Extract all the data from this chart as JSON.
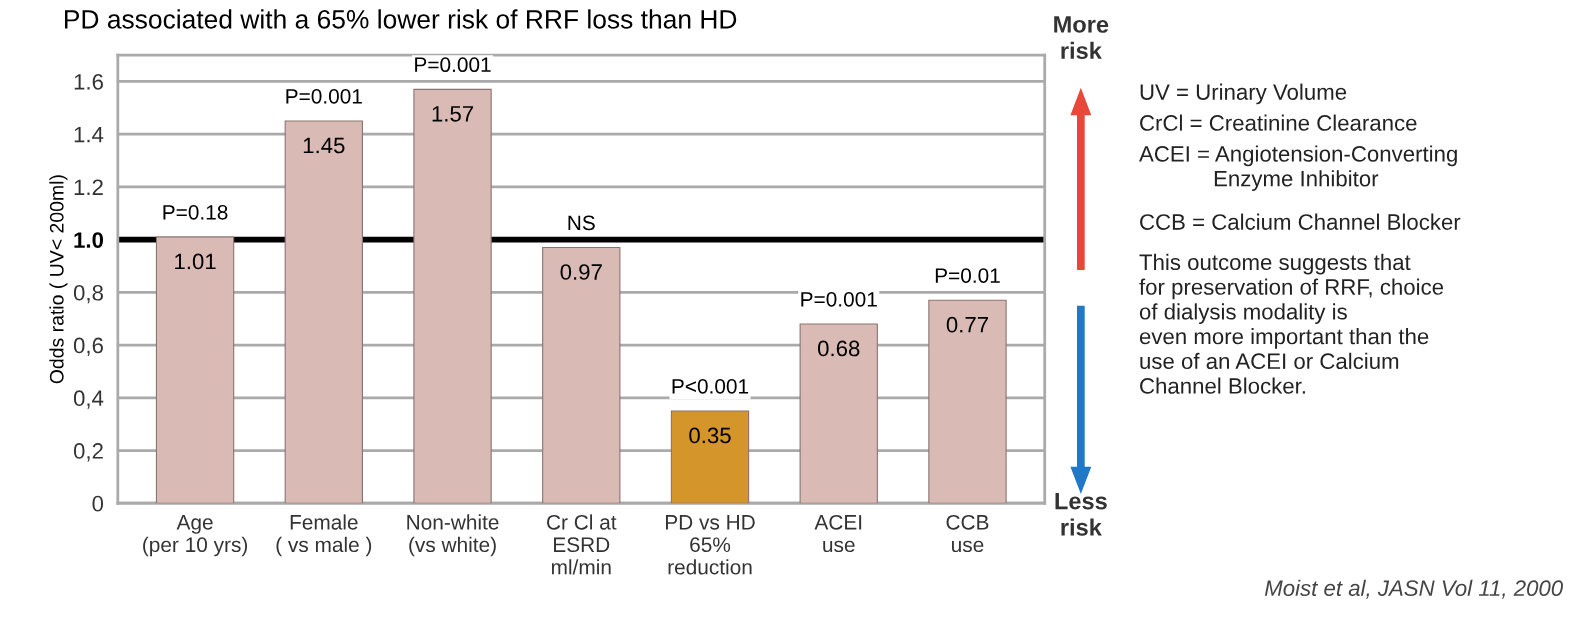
{
  "chart_data": {
    "type": "bar",
    "title": "PD associated with a 65% lower risk of RRF loss than HD",
    "ylabel": "Odds ratio ( UV< 200ml)",
    "categories": [
      "Age\n(per 10 yrs)",
      "Female\n( vs male )",
      "Non-white\n(vs white)",
      "Cr Cl at\nESRD\nml/min",
      "PD vs HD\n65%\nreduction",
      "ACEI\nuse",
      "CCB\nuse"
    ],
    "values": [
      1.01,
      1.45,
      1.57,
      0.97,
      0.35,
      0.68,
      0.77
    ],
    "colors": [
      "#d9bab5",
      "#d9bab5",
      "#d9bab5",
      "#d9bab5",
      "#d4952a",
      "#d9bab5",
      "#d9bab5"
    ],
    "data_labels": true,
    "ylim": [
      0,
      1.7
    ],
    "yticks": [
      0,
      {
        "value": 0.2,
        "label": "0,2"
      },
      {
        "value": 0.4,
        "label": "0,4"
      },
      {
        "value": 0.6,
        "label": "0,6"
      },
      {
        "value": 0.8,
        "label": "0,8"
      },
      {
        "value": 1.0,
        "label": "1.0"
      },
      1.2,
      1.4,
      1.6
    ],
    "grid": "y",
    "ref_lines": [
      {
        "axis": "y",
        "value": 1.0,
        "color": "#000000"
      }
    ],
    "annotations": [
      {
        "text": "P=0.18",
        "x": "Age\n(per 10 yrs)",
        "y": 1.01
      },
      {
        "text": "P=0.001",
        "x": "Female\n( vs male )",
        "y": 1.45
      },
      {
        "text": "P=0.001",
        "x": "Non-white\n(vs white)",
        "y": 1.57
      },
      {
        "text": "NS",
        "x": "Cr Cl at\nESRD\nml/min",
        "y": 0.97
      },
      {
        "text": "P<0.001",
        "x": "PD vs HD\n65%\nreduction",
        "y": 0.35
      },
      {
        "text": "P=0.001",
        "x": "ACEI\nuse",
        "y": 0.68
      },
      {
        "text": "P=0.01",
        "x": "CCB\nuse",
        "y": 0.77
      },
      "More\nrisk",
      "Less\nrisk",
      "UV = Urinary Volume",
      "CrCl = Creatinine Clearance",
      "ACEI = Angiotension-Converting\n            Enzyme Inhibitor",
      "CCB = Calcium Channel Blocker",
      "This outcome suggests that\nfor preservation of RRF, choice\nof dialysis modality is\neven more important than the\nuse of an ACEI or Calcium\nChannel Blocker.",
      "Moist et al, JASN Vol 11, 2000"
    ]
  }
}
